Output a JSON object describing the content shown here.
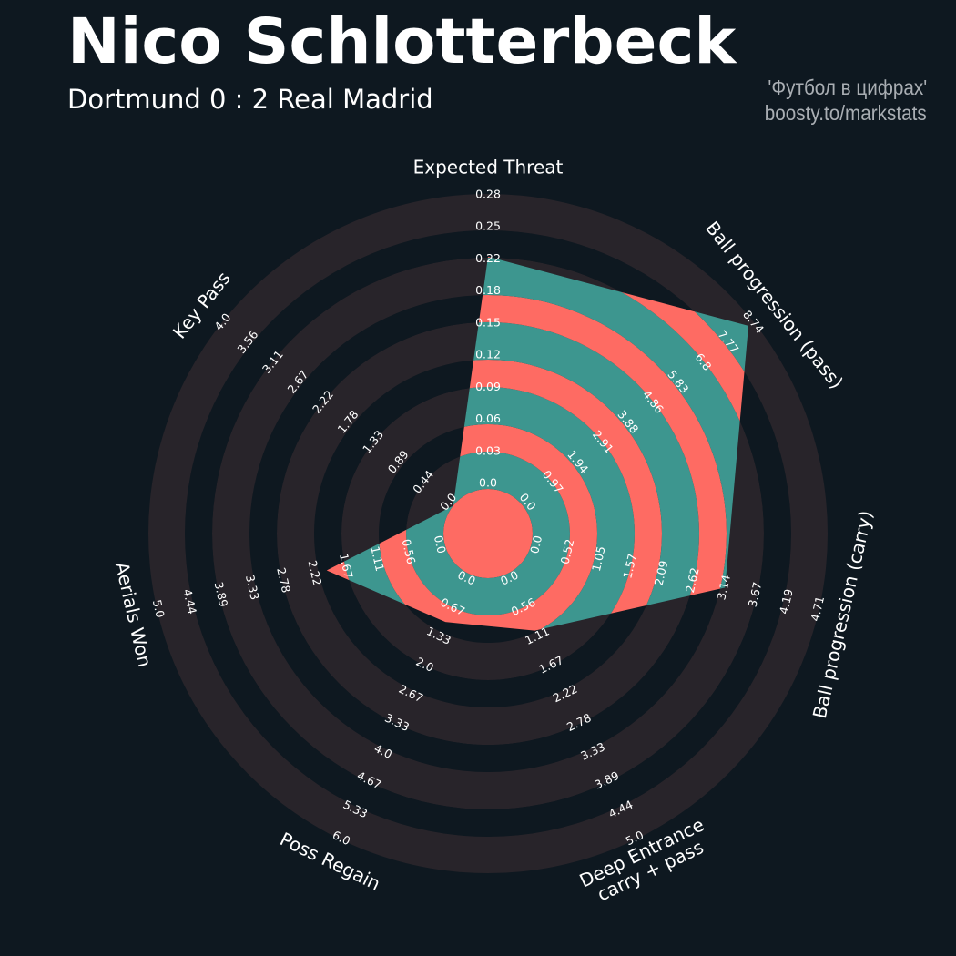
{
  "header": {
    "title": "Nico Schlotterbeck",
    "subtitle": "Dortmund 0 : 2 Real Madrid",
    "credit_line1": "'Футбол в цифрах'",
    "credit_line2": "boosty.to/markstats"
  },
  "colors": {
    "background": "#0e1820",
    "ring_light": "#28242a",
    "ring_dark": "#0e1820",
    "polygon_primary": "#fe6b63",
    "polygon_secondary": "#3d968f",
    "text": "#ffffff"
  },
  "chart_data": {
    "type": "radar",
    "params": [
      {
        "name": "Expected Threat",
        "name_line2": "",
        "value": 0.22,
        "range": [
          0,
          0.28
        ],
        "ticks": [
          "0.0",
          "0.03",
          "0.06",
          "0.09",
          "0.12",
          "0.15",
          "0.18",
          "0.22",
          "0.25",
          "0.28"
        ]
      },
      {
        "name": "Ball progression (pass)",
        "name_line2": "",
        "value": 8.57,
        "range": [
          0,
          8.74
        ],
        "ticks": [
          "0.0",
          "0.97",
          "1.94",
          "2.91",
          "3.88",
          "4.86",
          "5.83",
          "6.8",
          "7.77",
          "8.74"
        ]
      },
      {
        "name": "Ball progression (carry)",
        "name_line2": "",
        "value": 3.15,
        "range": [
          0,
          4.71
        ],
        "ticks": [
          "0.0",
          "0.52",
          "1.05",
          "1.57",
          "2.09",
          "2.62",
          "3.14",
          "3.67",
          "4.19",
          "4.71"
        ]
      },
      {
        "name": "Deep Entrance",
        "name_line2": "carry + pass",
        "value": 1.0,
        "range": [
          0,
          5.0
        ],
        "ticks": [
          "0.0",
          "0.56",
          "1.11",
          "1.67",
          "2.22",
          "2.78",
          "3.33",
          "3.89",
          "4.44",
          "5.0"
        ]
      },
      {
        "name": "Poss Regain",
        "name_line2": "",
        "value": 1.0,
        "range": [
          0,
          6.0
        ],
        "ticks": [
          "0.0",
          "0.67",
          "1.33",
          "2.0",
          "2.67",
          "3.33",
          "4.0",
          "4.67",
          "5.33",
          "6.0"
        ]
      },
      {
        "name": "Aerials Won",
        "name_line2": "",
        "value": 2.0,
        "range": [
          0,
          5.0
        ],
        "ticks": [
          "0.0",
          "0.56",
          "1.11",
          "1.67",
          "2.22",
          "2.78",
          "3.33",
          "3.89",
          "4.44",
          "5.0"
        ]
      },
      {
        "name": "Key Pass",
        "name_line2": "",
        "value": 0.0,
        "range": [
          0,
          4.0
        ],
        "ticks": [
          "0.0",
          "0.44",
          "0.89",
          "1.33",
          "1.78",
          "2.22",
          "2.67",
          "3.11",
          "3.56",
          "4.0"
        ]
      }
    ]
  }
}
